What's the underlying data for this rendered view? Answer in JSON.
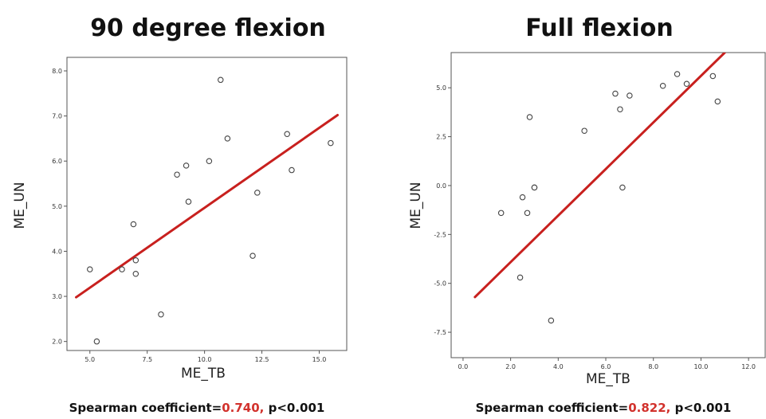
{
  "chart_data": [
    {
      "type": "scatter",
      "title": "90 degree flexion",
      "xlabel": "ME_TB",
      "ylabel": "ME_UN",
      "xlim": [
        4.0,
        16.2
      ],
      "ylim": [
        1.8,
        8.3
      ],
      "xticks": [
        5.0,
        7.5,
        10.0,
        12.5,
        15.0
      ],
      "xtick_labels": [
        "5.0",
        "7.5",
        "10.0",
        "12.5",
        "15.0"
      ],
      "yticks": [
        2.0,
        3.0,
        4.0,
        5.0,
        6.0,
        7.0,
        8.0
      ],
      "ytick_labels": [
        "2.0",
        "3.0",
        "4.0",
        "5.0",
        "6.0",
        "7.0",
        "8.0"
      ],
      "points": [
        {
          "x": 5.0,
          "y": 3.6
        },
        {
          "x": 5.3,
          "y": 2.0
        },
        {
          "x": 6.4,
          "y": 3.6
        },
        {
          "x": 6.9,
          "y": 4.6
        },
        {
          "x": 7.0,
          "y": 3.8
        },
        {
          "x": 7.0,
          "y": 3.5
        },
        {
          "x": 8.1,
          "y": 2.6
        },
        {
          "x": 8.8,
          "y": 5.7
        },
        {
          "x": 9.2,
          "y": 5.9
        },
        {
          "x": 9.3,
          "y": 5.1
        },
        {
          "x": 10.2,
          "y": 6.0
        },
        {
          "x": 10.7,
          "y": 7.8
        },
        {
          "x": 11.0,
          "y": 6.5
        },
        {
          "x": 12.1,
          "y": 3.9
        },
        {
          "x": 12.3,
          "y": 5.3
        },
        {
          "x": 13.6,
          "y": 6.6
        },
        {
          "x": 13.8,
          "y": 5.8
        },
        {
          "x": 15.5,
          "y": 6.4
        }
      ],
      "fit_line": {
        "x": [
          4.4,
          15.8
        ],
        "y": [
          2.98,
          7.02
        ]
      },
      "grid": false,
      "caption_prefix": "Spearman coefficient=",
      "coefficient": "0.740,",
      "caption_suffix": " p<0.001"
    },
    {
      "type": "scatter",
      "title": "Full flexion",
      "xlabel": "ME_TB",
      "ylabel": "ME_UN",
      "xlim": [
        -0.5,
        12.7
      ],
      "ylim": [
        -8.8,
        6.8
      ],
      "xticks": [
        0.0,
        2.0,
        4.0,
        6.0,
        8.0,
        10.0,
        12.0
      ],
      "xtick_labels": [
        "0.0",
        "2.0",
        "4.0",
        "6.0",
        "8.0",
        "10.0",
        "12.0"
      ],
      "yticks": [
        -7.5,
        -5.0,
        -2.5,
        0.0,
        2.5,
        5.0
      ],
      "ytick_labels": [
        "-7.5",
        "-5.0",
        "-2.5",
        "0.0",
        "2.5",
        "5.0"
      ],
      "points": [
        {
          "x": 1.6,
          "y": -1.4
        },
        {
          "x": 2.4,
          "y": -4.7
        },
        {
          "x": 2.5,
          "y": -0.6
        },
        {
          "x": 2.7,
          "y": -1.4
        },
        {
          "x": 2.8,
          "y": 3.5
        },
        {
          "x": 3.0,
          "y": -0.1
        },
        {
          "x": 3.0,
          "y": -0.1
        },
        {
          "x": 3.7,
          "y": -6.9
        },
        {
          "x": 5.1,
          "y": 2.8
        },
        {
          "x": 6.4,
          "y": 4.7
        },
        {
          "x": 6.6,
          "y": 3.9
        },
        {
          "x": 6.7,
          "y": -0.1
        },
        {
          "x": 7.0,
          "y": 4.6
        },
        {
          "x": 8.4,
          "y": 5.1
        },
        {
          "x": 9.0,
          "y": 5.7
        },
        {
          "x": 9.4,
          "y": 5.2
        },
        {
          "x": 10.5,
          "y": 5.6
        },
        {
          "x": 10.7,
          "y": 4.3
        }
      ],
      "fit_line": {
        "x": [
          0.5,
          11.0
        ],
        "y": [
          -5.7,
          6.8
        ]
      },
      "grid": false,
      "caption_prefix": "Spearman coefficient=",
      "coefficient": "0.822,",
      "caption_suffix": " p<0.001"
    }
  ],
  "colors": {
    "fit_line": "#c8201e",
    "coefficient": "#d2322d",
    "point_stroke": "#444444",
    "plot_bg": "#ffffff",
    "axis": "#555555"
  }
}
